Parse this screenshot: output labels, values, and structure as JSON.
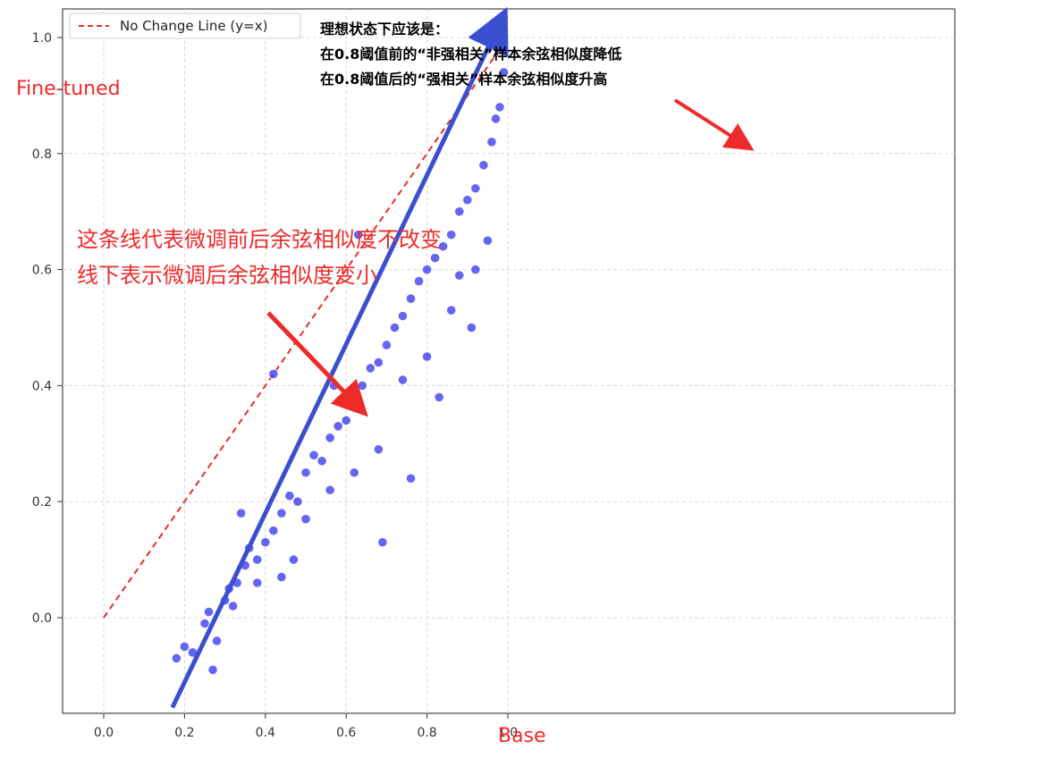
{
  "chart_data": {
    "type": "scatter",
    "xlabel": "Base",
    "ylabel": "Fine-tuned",
    "xlim": [
      -0.1,
      1.05
    ],
    "ylim": [
      -0.165,
      1.03
    ],
    "x_ticks": [
      "0.0",
      "0.2",
      "0.4",
      "0.6",
      "0.8",
      "1.0"
    ],
    "y_ticks": [
      "0.0",
      "0.2",
      "0.4",
      "0.6",
      "0.8",
      "1.0"
    ],
    "grid": true,
    "legend": {
      "placement": "top-left",
      "entries": [
        "No Change Line (y=x)"
      ]
    },
    "reference_line": {
      "name": "No Change Line (y=x)",
      "x": [
        0.0,
        1.0
      ],
      "y": [
        0.0,
        1.0
      ],
      "color": "#ee2a2a",
      "style": "dashed"
    },
    "trend_arrow": {
      "x": [
        0.17,
        0.98
      ],
      "y": [
        -0.155,
        1.025
      ],
      "color": "#3a4fd0"
    },
    "series": [
      {
        "color": "#2a2af0",
        "points_x": [
          0.18,
          0.2,
          0.22,
          0.25,
          0.27,
          0.28,
          0.3,
          0.31,
          0.33,
          0.35,
          0.36,
          0.38,
          0.4,
          0.42,
          0.44,
          0.46,
          0.48,
          0.5,
          0.52,
          0.54,
          0.56,
          0.58,
          0.6,
          0.62,
          0.64,
          0.66,
          0.68,
          0.7,
          0.72,
          0.74,
          0.76,
          0.78,
          0.8,
          0.82,
          0.84,
          0.86,
          0.88,
          0.9,
          0.92,
          0.94,
          0.96,
          0.98,
          0.99,
          0.26,
          0.32,
          0.38,
          0.44,
          0.5,
          0.56,
          0.62,
          0.68,
          0.74,
          0.8,
          0.86,
          0.92,
          0.95,
          0.97,
          0.63,
          0.42,
          0.57,
          0.76,
          0.83,
          0.91,
          0.34,
          0.47,
          0.69,
          0.88
        ],
        "points_y": [
          -0.07,
          -0.05,
          -0.06,
          -0.01,
          -0.09,
          -0.04,
          0.03,
          0.05,
          0.06,
          0.09,
          0.12,
          0.1,
          0.13,
          0.15,
          0.18,
          0.21,
          0.2,
          0.25,
          0.28,
          0.27,
          0.31,
          0.33,
          0.34,
          0.38,
          0.4,
          0.43,
          0.44,
          0.47,
          0.5,
          0.52,
          0.55,
          0.58,
          0.6,
          0.62,
          0.64,
          0.66,
          0.7,
          0.72,
          0.74,
          0.78,
          0.82,
          0.88,
          0.94,
          0.01,
          0.02,
          0.06,
          0.07,
          0.17,
          0.22,
          0.25,
          0.29,
          0.41,
          0.45,
          0.53,
          0.6,
          0.65,
          0.86,
          0.66,
          0.42,
          0.4,
          0.24,
          0.38,
          0.5,
          0.18,
          0.1,
          0.13,
          0.59
        ]
      }
    ],
    "annotations": [
      {
        "text": "理想状态下应该是：",
        "color": "#000000"
      },
      {
        "text": "在0.8阈值前的“非强相关”样本余弦相似度降低",
        "color": "#000000"
      },
      {
        "text": "在0.8阈值后的“强相关”样本余弦相似度升高",
        "color": "#000000"
      },
      {
        "text": "这条线代表微调前后余弦相似度不改变",
        "color": "#ee2a2a"
      },
      {
        "text": "线下表示微调后余弦相似度变小",
        "color": "#ee2a2a"
      }
    ]
  }
}
